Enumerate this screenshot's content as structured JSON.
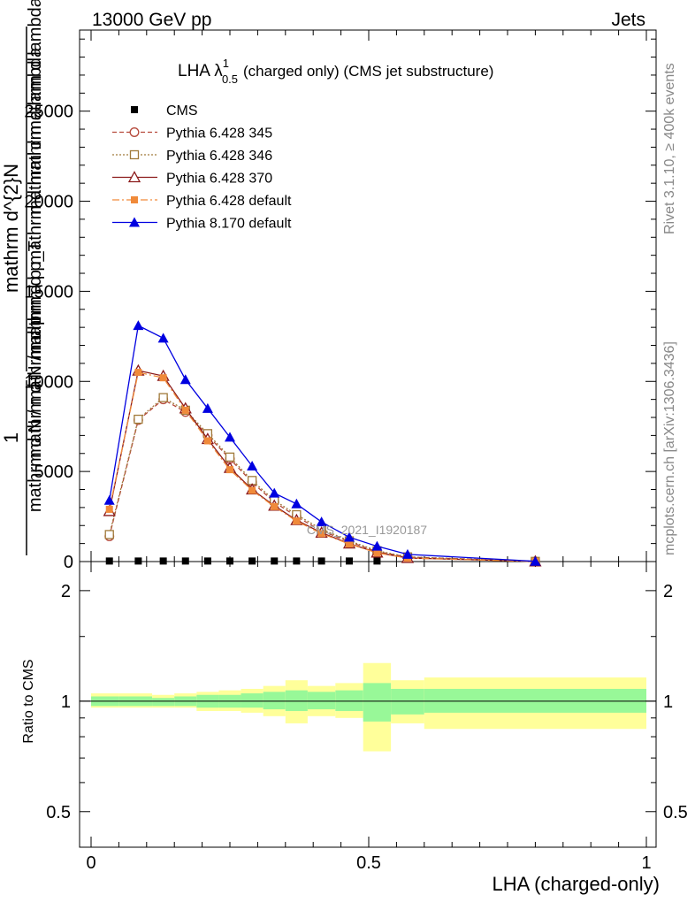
{
  "header": {
    "energy": "13000 GeV pp",
    "category": "Jets"
  },
  "side": {
    "rivet": "Rivet 3.1.10, ≥ 400k events",
    "mcplots": "mcplots.cern.ch [arXiv:1306.3436]"
  },
  "chart_data": {
    "type": "line",
    "title": "LHA λ¹₀.₅ (charged only) (CMS jet substructure)",
    "title_main": "LHA λ",
    "title_sup": "1",
    "title_sub": "0.5",
    "title_rest": "(charged only) (CMS jet substructure)",
    "analysis_label": "CMS_2021_I1920187",
    "xlabel": "LHA (charged-only)",
    "ylabel_upper": {
      "numerator_one": "1",
      "fraction_num": "mathrm d^{2}N",
      "fraction_den_a": "mathrm d p",
      "fraction_den_sub": "T",
      "fraction_den_b": "mathrm d mathrm d lambda",
      "line1": "mathrm d N / mathrm d p",
      "line2": "mathrm d^2N",
      "line3": "mathrm d p mathrm d mathrm d lambda",
      "line4": "mathrm d N / mathrm d p_T"
    },
    "ylabel_lower": "Ratio to CMS",
    "xlim": [
      0,
      1
    ],
    "ylim_upper": [
      0,
      29500
    ],
    "ylim_lower_log": [
      0.4,
      2.4
    ],
    "x_ticks": [
      {
        "v": 0,
        "label": "0"
      },
      {
        "v": 0.5,
        "label": "0.5"
      },
      {
        "v": 1,
        "label": "1"
      }
    ],
    "y_ticks_upper": [
      {
        "v": 0,
        "label": "0"
      },
      {
        "v": 5000,
        "label": "5000"
      },
      {
        "v": 10000,
        "label": "10000"
      },
      {
        "v": 15000,
        "label": "15000"
      },
      {
        "v": 20000,
        "label": "20000"
      },
      {
        "v": 25000,
        "label": "25000"
      }
    ],
    "y_ticks_lower": [
      {
        "v": 0.5,
        "label": "0.5"
      },
      {
        "v": 1,
        "label": "1"
      },
      {
        "v": 2,
        "label": "2"
      }
    ],
    "x": [
      0.033,
      0.085,
      0.13,
      0.17,
      0.21,
      0.25,
      0.29,
      0.33,
      0.37,
      0.415,
      0.465,
      0.515,
      0.57,
      0.8
    ],
    "series": [
      {
        "name": "CMS",
        "color": "#000000",
        "marker": "filled-square",
        "style": "none",
        "values": [
          30,
          30,
          30,
          30,
          30,
          30,
          30,
          30,
          30,
          30,
          30,
          30,
          null,
          null
        ]
      },
      {
        "name": "Pythia 6.428 345",
        "color": "#b5483a",
        "marker": "open-circle",
        "style": "dashed",
        "values": [
          1400,
          7850,
          9000,
          8300,
          7000,
          5700,
          4400,
          3300,
          2500,
          1700,
          1100,
          550,
          250,
          10
        ]
      },
      {
        "name": "Pythia 6.428 346",
        "color": "#a07a3a",
        "marker": "open-square",
        "style": "dotted",
        "values": [
          1500,
          7900,
          9100,
          8400,
          7100,
          5800,
          4500,
          3400,
          2600,
          1800,
          1150,
          600,
          260,
          10
        ]
      },
      {
        "name": "Pythia 6.428 370",
        "color": "#8b1a1a",
        "marker": "open-triangle",
        "style": "solid",
        "values": [
          2800,
          10600,
          10300,
          8500,
          6800,
          5200,
          4000,
          3100,
          2300,
          1600,
          1000,
          500,
          200,
          8
        ]
      },
      {
        "name": "Pythia 6.428 default",
        "color": "#f08a3a",
        "marker": "filled-square-small",
        "style": "dashdot",
        "values": [
          2900,
          10500,
          10200,
          8400,
          6700,
          5100,
          3950,
          3050,
          2250,
          1550,
          980,
          480,
          190,
          8
        ]
      },
      {
        "name": "Pythia 8.170 default",
        "color": "#0000e0",
        "marker": "filled-triangle",
        "style": "solid",
        "values": [
          3400,
          13100,
          12400,
          10100,
          8500,
          6900,
          5300,
          3800,
          3200,
          2200,
          1350,
          850,
          400,
          15
        ]
      }
    ],
    "ratio_bands": {
      "edges": [
        0,
        0.05,
        0.11,
        0.15,
        0.19,
        0.23,
        0.27,
        0.31,
        0.35,
        0.39,
        0.44,
        0.49,
        0.54,
        0.6,
        1.0
      ],
      "inner_color": "#98f898",
      "outer_color": "#ffff9a",
      "inner": [
        [
          0.97,
          1.03
        ],
        [
          0.97,
          1.03
        ],
        [
          0.97,
          1.02
        ],
        [
          0.97,
          1.03
        ],
        [
          0.96,
          1.04
        ],
        [
          0.96,
          1.04
        ],
        [
          0.96,
          1.05
        ],
        [
          0.95,
          1.06
        ],
        [
          0.94,
          1.07
        ],
        [
          0.95,
          1.06
        ],
        [
          0.94,
          1.07
        ],
        [
          0.88,
          1.12
        ],
        [
          0.92,
          1.08
        ],
        [
          0.93,
          1.08
        ]
      ],
      "outer": [
        [
          0.96,
          1.05
        ],
        [
          0.96,
          1.05
        ],
        [
          0.96,
          1.04
        ],
        [
          0.96,
          1.05
        ],
        [
          0.94,
          1.06
        ],
        [
          0.94,
          1.07
        ],
        [
          0.93,
          1.08
        ],
        [
          0.91,
          1.1
        ],
        [
          0.87,
          1.14
        ],
        [
          0.91,
          1.1
        ],
        [
          0.9,
          1.12
        ],
        [
          0.73,
          1.27
        ],
        [
          0.87,
          1.14
        ],
        [
          0.84,
          1.16
        ]
      ]
    }
  }
}
